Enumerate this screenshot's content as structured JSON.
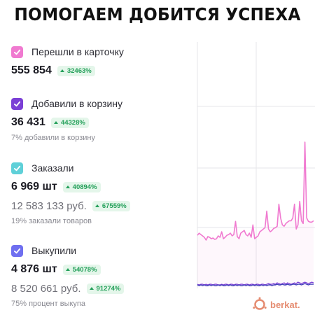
{
  "headline": "ПОМОГАЕМ ДОБИТСЯ УСПЕХА",
  "metrics": [
    {
      "title": "Перешли в карточку",
      "value": "555 854",
      "badge": "32463%",
      "color": "#f07ad0"
    },
    {
      "title": "Добавили в корзину",
      "value": "36 431",
      "badge": "44328%",
      "note": "7% добавили в корзину",
      "color": "#7b3fd6"
    },
    {
      "title": "Заказали",
      "value": "6 969 шт",
      "badge": "40894%",
      "secondary": "12 583 133 руб.",
      "secondary_badge": "67559%",
      "note": "19% заказали товаров",
      "color": "#5fd0d8"
    },
    {
      "title": "Выкупили",
      "value": "4 876 шт",
      "badge": "54078%",
      "secondary": "8 520 661 руб.",
      "secondary_badge": "91274%",
      "note": "75% процент выкупа",
      "color": "#6f6ff0"
    }
  ],
  "logo": {
    "text": "berkat."
  },
  "chart_data": {
    "type": "line",
    "grid": true,
    "series": [
      {
        "color": "#f07ad0",
        "values": [
          75,
          78,
          76,
          74,
          72,
          68,
          73,
          72,
          70,
          71,
          69,
          70,
          74,
          72,
          80,
          70,
          72,
          75,
          76,
          78,
          74,
          76,
          95,
          73,
          70,
          78,
          80,
          82,
          76,
          74,
          78,
          72,
          90,
          70,
          72,
          74,
          80,
          82,
          84,
          86,
          110,
          84,
          80,
          82,
          85,
          86,
          88,
          120,
          100,
          90,
          88,
          92,
          94,
          96,
          96,
          100,
          120,
          84,
          90,
          124,
          96,
          92,
          210,
          100,
          95,
          94,
          94,
          96
        ]
      },
      {
        "color": "#7b3fd6",
        "values": [
          4,
          3,
          4,
          4,
          3,
          4,
          3,
          4,
          4,
          3,
          4,
          4,
          3,
          3,
          4,
          3,
          4,
          4,
          3,
          4,
          4,
          3,
          4,
          4,
          3,
          4,
          4,
          3,
          4,
          4,
          3,
          4,
          4,
          3,
          4,
          4,
          3,
          4,
          4,
          3,
          4,
          5,
          4,
          4,
          5,
          4,
          6,
          5,
          4,
          5,
          6,
          4,
          6,
          5,
          4,
          5,
          6,
          5,
          7,
          6,
          5,
          6,
          7,
          6,
          5,
          6,
          7,
          6
        ]
      },
      {
        "color": "#3f3fb8",
        "values": [
          3,
          2,
          3,
          2,
          3,
          2,
          2,
          3,
          2,
          3,
          2,
          2,
          3,
          2,
          3,
          2,
          2,
          3,
          2,
          3,
          2,
          2,
          3,
          2,
          3,
          2,
          2,
          3,
          2,
          3,
          2,
          2,
          3,
          2,
          3,
          2,
          2,
          3,
          2,
          3,
          2,
          3,
          3,
          2,
          3,
          3,
          4,
          3,
          3,
          4,
          3,
          3,
          4,
          3,
          3,
          4,
          4,
          3,
          4,
          4,
          3,
          4,
          5,
          4,
          3,
          4,
          4,
          4
        ]
      }
    ]
  }
}
